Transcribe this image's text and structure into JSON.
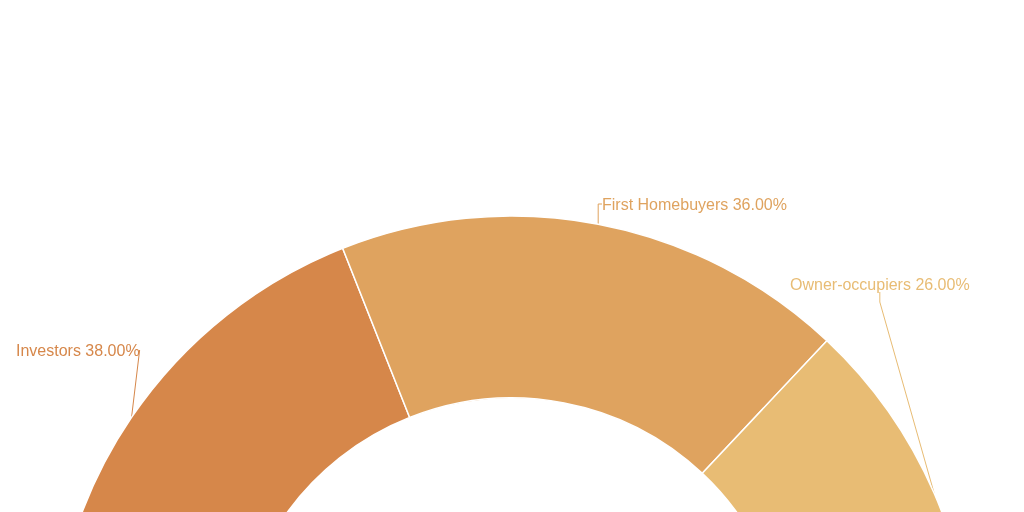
{
  "chart_data": {
    "type": "donut",
    "categories": [
      "Investors",
      "First Homebuyers",
      "Owner-occupiers"
    ],
    "values": [
      38,
      36,
      26
    ],
    "value_labels": [
      "38.00%",
      "36.00%",
      "26.00%"
    ],
    "colors": [
      "#d6874a",
      "#dfa35f",
      "#e8bc74"
    ],
    "legend": false
  }
}
